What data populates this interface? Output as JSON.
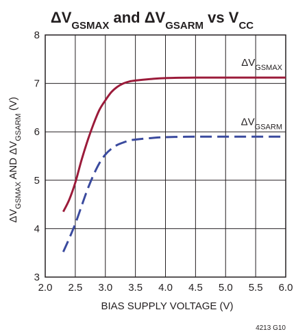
{
  "chart_data": {
    "type": "line",
    "title": {
      "parts": [
        {
          "text": "ΔV",
          "sub": false
        },
        {
          "text": "GSMAX",
          "sub": true
        },
        {
          "text": " and ΔV",
          "sub": false
        },
        {
          "text": "GSARM",
          "sub": true
        },
        {
          "text": " vs V",
          "sub": false
        },
        {
          "text": "CC",
          "sub": true
        }
      ]
    },
    "xlabel": "BIAS SUPPLY VOLTAGE (V)",
    "ylabel": {
      "parts": [
        {
          "text": "ΔV",
          "sub": false
        },
        {
          "text": "GSMAX",
          "sub": true
        },
        {
          "text": " AND ΔV",
          "sub": false
        },
        {
          "text": "GSARM",
          "sub": true
        },
        {
          "text": " (V)",
          "sub": false
        }
      ]
    },
    "xlim": [
      2.0,
      6.0
    ],
    "ylim": [
      3,
      8
    ],
    "xticks": [
      "2.0",
      "2.5",
      "3.0",
      "3.5",
      "4.0",
      "4.5",
      "5.0",
      "5.5",
      "6.0"
    ],
    "yticks": [
      "3",
      "4",
      "5",
      "6",
      "7",
      "8"
    ],
    "grid": true,
    "figure_id": "4213 G10",
    "series": [
      {
        "name": "ΔVGSMAX",
        "label_parts": [
          {
            "text": "ΔV",
            "sub": false
          },
          {
            "text": "GSMAX",
            "sub": true
          }
        ],
        "color": "#9b1b3a",
        "dashed": false,
        "x": [
          2.3,
          2.4,
          2.5,
          2.6,
          2.7,
          2.8,
          2.9,
          3.0,
          3.1,
          3.2,
          3.3,
          3.4,
          3.5,
          3.75,
          4.0,
          4.5,
          5.0,
          5.5,
          6.0
        ],
        "y": [
          4.35,
          4.6,
          4.95,
          5.4,
          5.8,
          6.15,
          6.45,
          6.65,
          6.82,
          6.93,
          7.0,
          7.04,
          7.06,
          7.09,
          7.11,
          7.12,
          7.12,
          7.12,
          7.12
        ]
      },
      {
        "name": "ΔVGSARM",
        "label_parts": [
          {
            "text": "ΔV",
            "sub": false
          },
          {
            "text": "GSARM",
            "sub": true
          }
        ],
        "color": "#3a4a9e",
        "dashed": true,
        "x": [
          2.3,
          2.4,
          2.5,
          2.6,
          2.7,
          2.8,
          2.9,
          3.0,
          3.1,
          3.2,
          3.3,
          3.4,
          3.5,
          3.75,
          4.0,
          4.5,
          5.0,
          5.5,
          6.0
        ],
        "y": [
          3.52,
          3.8,
          4.1,
          4.45,
          4.8,
          5.1,
          5.35,
          5.53,
          5.65,
          5.73,
          5.78,
          5.82,
          5.84,
          5.87,
          5.89,
          5.9,
          5.9,
          5.9,
          5.9
        ]
      }
    ]
  }
}
